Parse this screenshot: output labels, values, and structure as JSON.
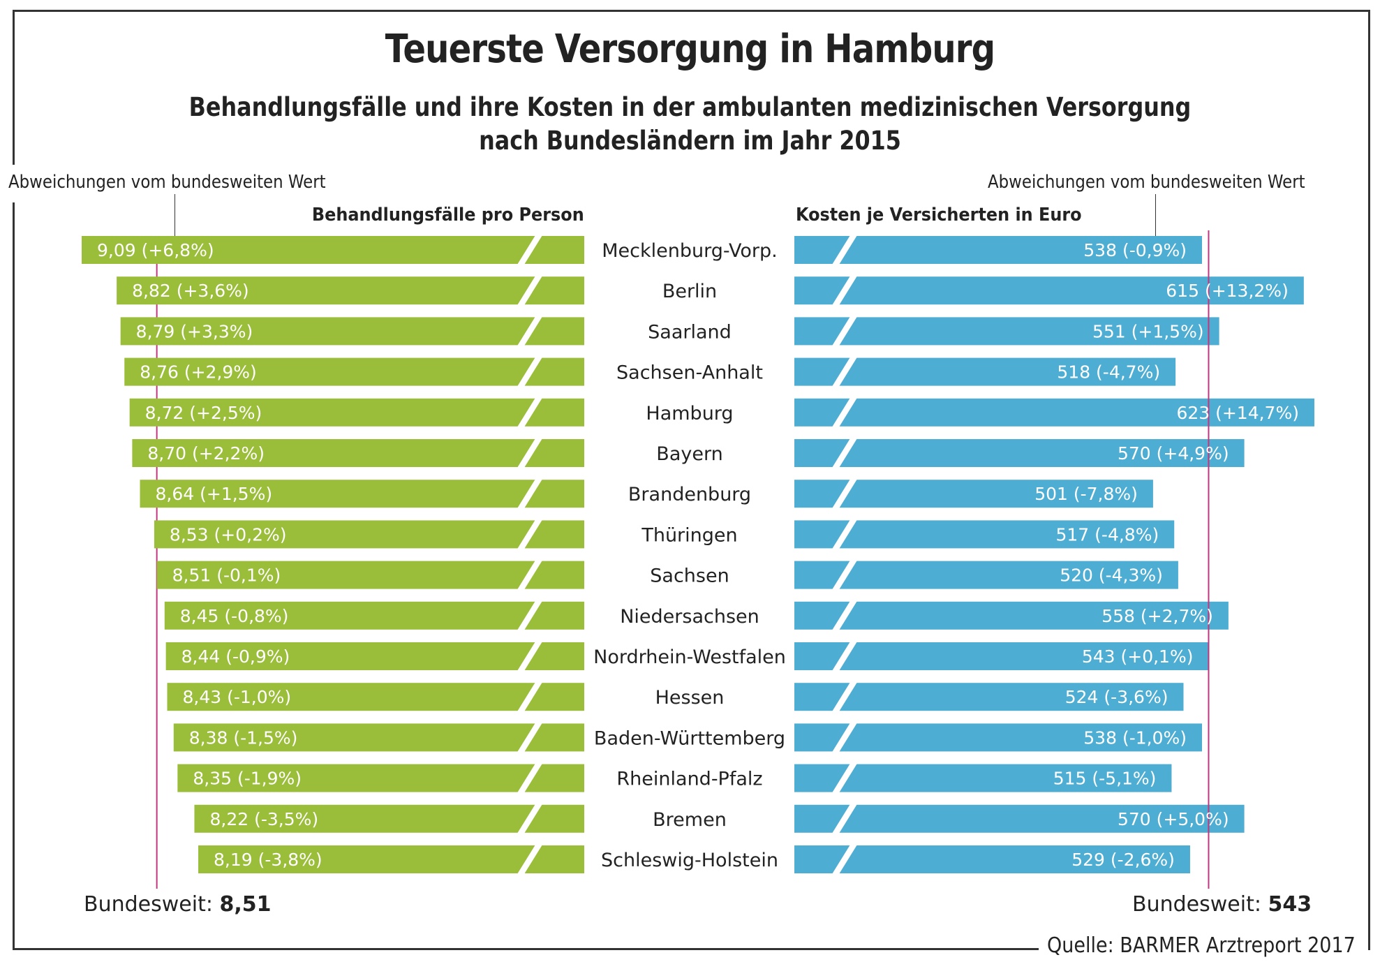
{
  "title": "Teuerste Versorgung in Hamburg",
  "subtitle_line1": "Behandlungsfälle und ihre Kosten in der ambulanten medizinischen Versorgung",
  "subtitle_line2": "nach Bundesländern im Jahr 2015",
  "annotation_left": "Abweichungen vom bundesweiten Wert",
  "annotation_right": "Abweichungen vom bundesweiten Wert",
  "source": "Quelle: BARMER Arztreport 2017",
  "colors": {
    "cases_bar": "#9bbe3a",
    "costs_bar": "#4eadd2",
    "reference_line": "#c2367e",
    "text": "#222222"
  },
  "chart_data": [
    {
      "type": "bar",
      "orientation": "horizontal",
      "direction": "right-to-left",
      "title": "Behandlungsfälle pro Person",
      "categories": [
        "Mecklenburg-Vorp.",
        "Berlin",
        "Saarland",
        "Sachsen-Anhalt",
        "Hamburg",
        "Bayern",
        "Brandenburg",
        "Thüringen",
        "Sachsen",
        "Niedersachsen",
        "Nordrhein-Westfalen",
        "Hessen",
        "Baden-Württemberg",
        "Rheinland-Pfalz",
        "Bremen",
        "Schleswig-Holstein"
      ],
      "values": [
        9.09,
        8.82,
        8.79,
        8.76,
        8.72,
        8.7,
        8.64,
        8.53,
        8.51,
        8.45,
        8.44,
        8.43,
        8.38,
        8.35,
        8.22,
        8.19
      ],
      "labels": [
        "9,09 (+6,8%)",
        "8,82 (+3,6%)",
        "8,79 (+3,3%)",
        "8,76 (+2,9%)",
        "8,72 (+2,5%)",
        "8,70 (+2,2%)",
        "8,64 (+1,5%)",
        "8,53 (+0,2%)",
        "8,51 (-0,1%)",
        "8,45 (-0,8%)",
        "8,44 (-0,9%)",
        "8,43 (-1,0%)",
        "8,38 (-1,5%)",
        "8,35 (-1,9%)",
        "8,22 (-3,5%)",
        "8,19 (-3,8%)"
      ],
      "deviation_pct": [
        6.8,
        3.6,
        3.3,
        2.9,
        2.5,
        2.2,
        1.5,
        0.2,
        -0.1,
        -0.8,
        -0.9,
        -1.0,
        -1.5,
        -1.9,
        -3.5,
        -3.8
      ],
      "reference": {
        "label": "Bundesweit:",
        "value": 8.51,
        "value_text": "8,51"
      },
      "axis_broken": true
    },
    {
      "type": "bar",
      "orientation": "horizontal",
      "direction": "left-to-right",
      "title": "Kosten je Versicherten in Euro",
      "categories": [
        "Mecklenburg-Vorp.",
        "Berlin",
        "Saarland",
        "Sachsen-Anhalt",
        "Hamburg",
        "Bayern",
        "Brandenburg",
        "Thüringen",
        "Sachsen",
        "Niedersachsen",
        "Nordrhein-Westfalen",
        "Hessen",
        "Baden-Württemberg",
        "Rheinland-Pfalz",
        "Bremen",
        "Schleswig-Holstein"
      ],
      "values": [
        538,
        615,
        551,
        518,
        623,
        570,
        501,
        517,
        520,
        558,
        543,
        524,
        538,
        515,
        570,
        529
      ],
      "labels": [
        "538 (-0,9%)",
        "615 (+13,2%)",
        "551 (+1,5%)",
        "518 (-4,7%)",
        "623 (+14,7%)",
        "570 (+4,9%)",
        "501 (-7,8%)",
        "517 (-4,8%)",
        "520 (-4,3%)",
        "558 (+2,7%)",
        "543 (+0,1%)",
        "524 (-3,6%)",
        "538 (-1,0%)",
        "515 (-5,1%)",
        "570 (+5,0%)",
        "529 (-2,6%)"
      ],
      "deviation_pct": [
        -0.9,
        13.2,
        1.5,
        -4.7,
        14.7,
        4.9,
        -7.8,
        -4.8,
        -4.3,
        2.7,
        0.1,
        -3.6,
        -1.0,
        -5.1,
        5.0,
        -2.6
      ],
      "reference": {
        "label": "Bundesweit:",
        "value": 543,
        "value_text": "543"
      },
      "axis_broken": true
    }
  ]
}
